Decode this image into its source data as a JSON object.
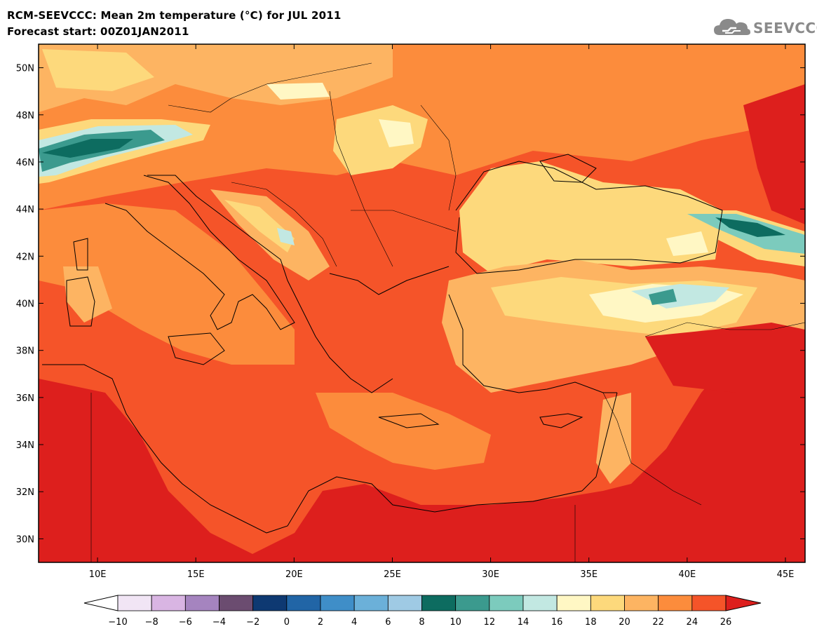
{
  "header": {
    "title": "RCM-SEEVCCC: Mean 2m temperature (°C) for JUL 2011",
    "subtitle": "Forecast start: 00Z01JAN2011"
  },
  "logo": {
    "text": "SEEVCCC",
    "icon": "cloud-logo-icon",
    "color": "#8a8a8a"
  },
  "map": {
    "lon_range": [
      7,
      46
    ],
    "lat_range": [
      29,
      51
    ],
    "lon_ticks": [
      {
        "value": 10,
        "label": "10E"
      },
      {
        "value": 15,
        "label": "15E"
      },
      {
        "value": 20,
        "label": "20E"
      },
      {
        "value": 25,
        "label": "25E"
      },
      {
        "value": 30,
        "label": "30E"
      },
      {
        "value": 35,
        "label": "35E"
      },
      {
        "value": 40,
        "label": "40E"
      },
      {
        "value": 45,
        "label": "45E"
      }
    ],
    "lat_ticks": [
      {
        "value": 50,
        "label": "50N"
      },
      {
        "value": 48,
        "label": "48N"
      },
      {
        "value": 46,
        "label": "46N"
      },
      {
        "value": 44,
        "label": "44N"
      },
      {
        "value": 42,
        "label": "42N"
      },
      {
        "value": 40,
        "label": "40N"
      },
      {
        "value": 38,
        "label": "38N"
      },
      {
        "value": 36,
        "label": "36N"
      },
      {
        "value": 34,
        "label": "34N"
      },
      {
        "value": 32,
        "label": "32N"
      },
      {
        "value": 30,
        "label": "30N"
      }
    ]
  },
  "colorbar": {
    "colors": [
      "#f1e5f5",
      "#d9b5e3",
      "#a584bf",
      "#6b4c70",
      "#0e3972",
      "#2165a6",
      "#3f8ec8",
      "#6bb0d9",
      "#9fcae4",
      "#0d6c60",
      "#3b9a8e",
      "#7ccbbd",
      "#c2e8e2",
      "#fff7c4",
      "#fdd97c",
      "#fdb462",
      "#fc8c3c",
      "#f55429"
    ],
    "under_color": "#ffffff",
    "over_color": "#dd1f1d",
    "labels": [
      "−10",
      "−8",
      "−6",
      "−4",
      "−2",
      "0",
      "2",
      "4",
      "6",
      "8",
      "10",
      "12",
      "14",
      "16",
      "18",
      "20",
      "22",
      "24",
      "26"
    ]
  }
}
